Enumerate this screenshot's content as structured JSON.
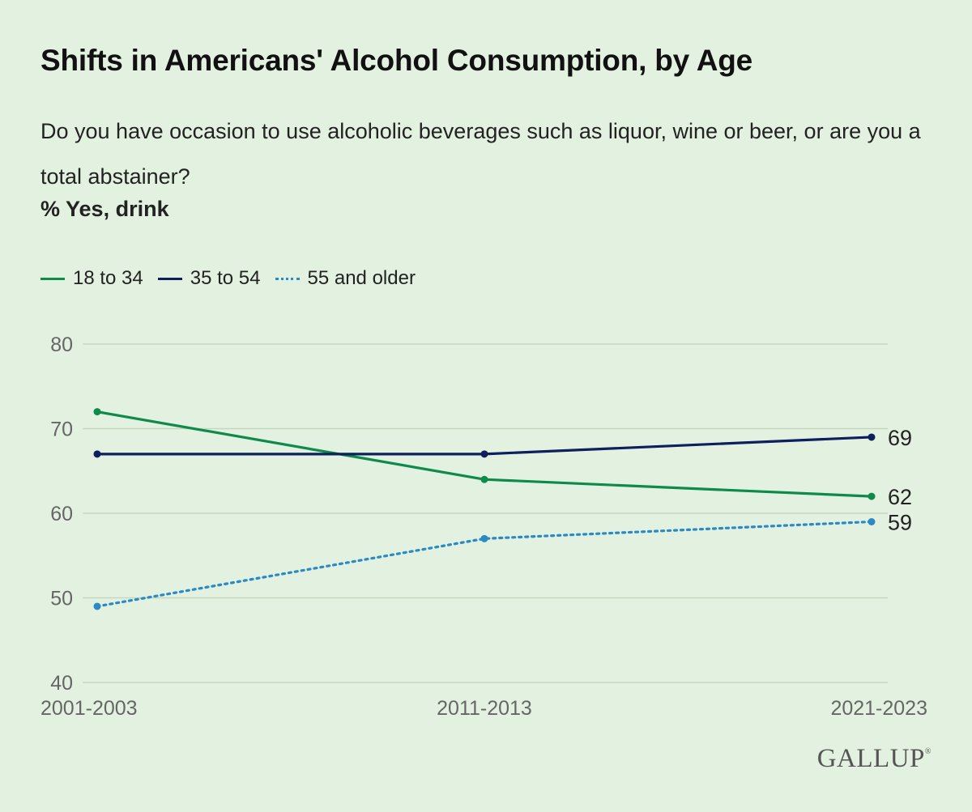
{
  "title": "Shifts in Americans' Alcohol Consumption, by Age",
  "question": "Do you have occasion to use alcoholic beverages such as liquor, wine or beer, or are you a total abstainer?",
  "measure": "% Yes, drink",
  "logo": "GALLUP",
  "logo_mark": "®",
  "chart_data": {
    "type": "line",
    "x": [
      "2001-2003",
      "2011-2013",
      "2021-2023"
    ],
    "ylim": [
      40,
      80
    ],
    "yticks": [
      40,
      50,
      60,
      70,
      80
    ],
    "grid": true,
    "legend_position": "top-left",
    "series": [
      {
        "name": "18 to 34",
        "values": [
          72,
          64,
          62
        ],
        "color": "#0e8a4a",
        "style": "solid",
        "end_label": "62"
      },
      {
        "name": "35 to 54",
        "values": [
          67,
          67,
          69
        ],
        "color": "#0d1f5c",
        "style": "solid",
        "end_label": "69"
      },
      {
        "name": "55 and older",
        "values": [
          49,
          57,
          59
        ],
        "color": "#2b8ac4",
        "style": "dotted",
        "end_label": "59"
      }
    ]
  }
}
